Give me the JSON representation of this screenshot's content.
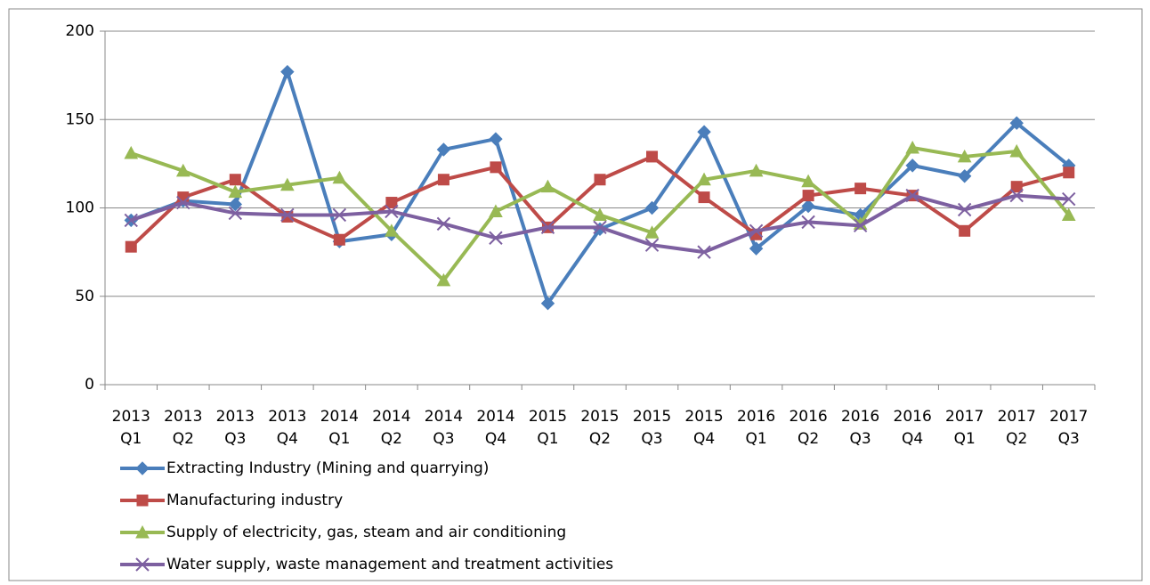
{
  "chart_data": {
    "type": "line",
    "categories": [
      [
        "2013",
        "Q1"
      ],
      [
        "2013",
        "Q2"
      ],
      [
        "2013",
        "Q3"
      ],
      [
        "2013",
        "Q4"
      ],
      [
        "2014",
        "Q1"
      ],
      [
        "2014",
        "Q2"
      ],
      [
        "2014",
        "Q3"
      ],
      [
        "2014",
        "Q4"
      ],
      [
        "2015",
        "Q1"
      ],
      [
        "2015",
        "Q2"
      ],
      [
        "2015",
        "Q3"
      ],
      [
        "2015",
        "Q4"
      ],
      [
        "2016",
        "Q1"
      ],
      [
        "2016",
        "Q2"
      ],
      [
        "2016",
        "Q3"
      ],
      [
        "2016",
        "Q4"
      ],
      [
        "2017",
        "Q1"
      ],
      [
        "2017",
        "Q2"
      ],
      [
        "2017",
        "Q3"
      ]
    ],
    "series": [
      {
        "name": "Extracting Industry (Mining and quarrying)",
        "color": "#4a7ebb",
        "marker": "diamond",
        "values": [
          93,
          104,
          102,
          177,
          81,
          85,
          133,
          139,
          46,
          88,
          100,
          143,
          77,
          101,
          96,
          124,
          118,
          148,
          124
        ]
      },
      {
        "name": "Manufacturing industry",
        "color": "#be4b48",
        "marker": "square",
        "values": [
          78,
          106,
          116,
          95,
          82,
          103,
          116,
          123,
          89,
          116,
          129,
          106,
          85,
          107,
          111,
          107,
          87,
          112,
          120
        ]
      },
      {
        "name": "Supply of electricity, gas, steam and air conditioning",
        "color": "#98b954",
        "marker": "triangle",
        "values": [
          131,
          121,
          109,
          113,
          117,
          87,
          59,
          98,
          112,
          96,
          86,
          116,
          121,
          115,
          91,
          134,
          129,
          132,
          96
        ]
      },
      {
        "name": "Water supply, waste management and treatment activities",
        "color": "#7d60a0",
        "marker": "x",
        "values": [
          93,
          103,
          97,
          96,
          96,
          98,
          91,
          83,
          89,
          89,
          79,
          75,
          87,
          92,
          90,
          107,
          99,
          107,
          105
        ]
      }
    ],
    "ylim": [
      0,
      200
    ],
    "yticks": [
      0,
      50,
      100,
      150,
      200
    ],
    "grid": true,
    "legend": "bottom-left"
  }
}
